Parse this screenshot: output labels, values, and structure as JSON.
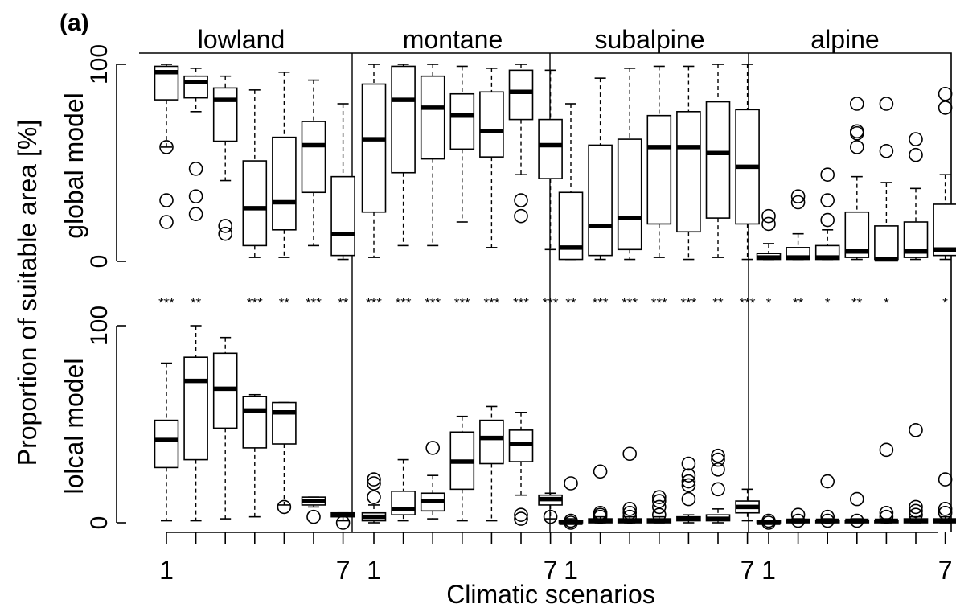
{
  "panel_label": "(a)",
  "chart_data": {
    "type": "boxplot",
    "ylabel": "Proportion of suitable area [%]",
    "xlabel": "Climatic scenarios",
    "ylim": [
      0,
      100
    ],
    "y_ticks": [
      "0",
      "100"
    ],
    "x_tick_labels": [
      "1",
      "7"
    ],
    "zones": [
      "lowland",
      "montane",
      "subalpine",
      "alpine"
    ],
    "models": [
      "global model",
      "lolcal model"
    ],
    "significance": [
      [
        "***",
        "**",
        "",
        "***",
        "**",
        "***",
        "**"
      ],
      [
        "***",
        "***",
        "***",
        "***",
        "***",
        "***",
        "***"
      ],
      [
        "**",
        "***",
        "***",
        "***",
        "***",
        "**",
        "***"
      ],
      [
        "*",
        "**",
        "*",
        "**",
        "*",
        "",
        "*"
      ]
    ],
    "panels": [
      {
        "model": "global model",
        "zones": [
          {
            "zone": "lowland",
            "boxes": [
              {
                "scenario": 1,
                "min": 58,
                "q1": 82,
                "median": 96,
                "q3": 99,
                "max": 100,
                "outliers": [
                  58,
                  31,
                  20
                ]
              },
              {
                "scenario": 2,
                "min": 76,
                "q1": 83,
                "median": 91,
                "q3": 94,
                "max": 98,
                "outliers": [
                  47,
                  33,
                  24
                ]
              },
              {
                "scenario": 3,
                "min": 41,
                "q1": 61,
                "median": 82,
                "q3": 88,
                "max": 94,
                "outliers": [
                  18,
                  14
                ]
              },
              {
                "scenario": 4,
                "min": 2,
                "q1": 8,
                "median": 27,
                "q3": 51,
                "max": 87,
                "outliers": []
              },
              {
                "scenario": 5,
                "min": 2,
                "q1": 16,
                "median": 30,
                "q3": 63,
                "max": 96,
                "outliers": []
              },
              {
                "scenario": 6,
                "min": 8,
                "q1": 35,
                "median": 59,
                "q3": 71,
                "max": 92,
                "outliers": []
              },
              {
                "scenario": 7,
                "min": 1,
                "q1": 3,
                "median": 14,
                "q3": 43,
                "max": 80,
                "outliers": []
              }
            ]
          },
          {
            "zone": "montane",
            "boxes": [
              {
                "scenario": 1,
                "min": 2,
                "q1": 25,
                "median": 62,
                "q3": 90,
                "max": 100,
                "outliers": []
              },
              {
                "scenario": 2,
                "min": 8,
                "q1": 45,
                "median": 82,
                "q3": 99,
                "max": 100,
                "outliers": []
              },
              {
                "scenario": 3,
                "min": 8,
                "q1": 52,
                "median": 78,
                "q3": 94,
                "max": 100,
                "outliers": []
              },
              {
                "scenario": 4,
                "min": 20,
                "q1": 57,
                "median": 74,
                "q3": 85,
                "max": 99,
                "outliers": []
              },
              {
                "scenario": 5,
                "min": 7,
                "q1": 53,
                "median": 66,
                "q3": 86,
                "max": 98,
                "outliers": []
              },
              {
                "scenario": 6,
                "min": 44,
                "q1": 72,
                "median": 86,
                "q3": 97,
                "max": 100,
                "outliers": [
                  31,
                  23
                ]
              },
              {
                "scenario": 7,
                "min": 6,
                "q1": 42,
                "median": 59,
                "q3": 72,
                "max": 97,
                "outliers": []
              }
            ]
          },
          {
            "zone": "subalpine",
            "boxes": [
              {
                "scenario": 1,
                "min": 1,
                "q1": 1,
                "median": 7,
                "q3": 35,
                "max": 80,
                "outliers": []
              },
              {
                "scenario": 2,
                "min": 1,
                "q1": 3,
                "median": 18,
                "q3": 59,
                "max": 93,
                "outliers": []
              },
              {
                "scenario": 3,
                "min": 1,
                "q1": 6,
                "median": 22,
                "q3": 62,
                "max": 98,
                "outliers": []
              },
              {
                "scenario": 4,
                "min": 2,
                "q1": 19,
                "median": 58,
                "q3": 74,
                "max": 99,
                "outliers": []
              },
              {
                "scenario": 5,
                "min": 1,
                "q1": 15,
                "median": 58,
                "q3": 76,
                "max": 99,
                "outliers": []
              },
              {
                "scenario": 6,
                "min": 2,
                "q1": 22,
                "median": 55,
                "q3": 81,
                "max": 100,
                "outliers": []
              },
              {
                "scenario": 7,
                "min": 1,
                "q1": 19,
                "median": 48,
                "q3": 77,
                "max": 100,
                "outliers": []
              }
            ]
          },
          {
            "zone": "alpine",
            "boxes": [
              {
                "scenario": 1,
                "min": 1,
                "q1": 1,
                "median": 2,
                "q3": 4,
                "max": 9,
                "outliers": [
                  23,
                  19
                ]
              },
              {
                "scenario": 2,
                "min": 1,
                "q1": 1,
                "median": 2,
                "q3": 7,
                "max": 14,
                "outliers": [
                  33,
                  30
                ]
              },
              {
                "scenario": 3,
                "min": 1,
                "q1": 1,
                "median": 2,
                "q3": 8,
                "max": 16,
                "outliers": [
                  44,
                  31,
                  21
                ]
              },
              {
                "scenario": 4,
                "min": 1,
                "q1": 2,
                "median": 5,
                "q3": 25,
                "max": 43,
                "outliers": [
                  80,
                  66,
                  65,
                  58
                ]
              },
              {
                "scenario": 5,
                "min": 1,
                "q1": 1,
                "median": 1,
                "q3": 18,
                "max": 40,
                "outliers": [
                  80,
                  56
                ]
              },
              {
                "scenario": 6,
                "min": 1,
                "q1": 2,
                "median": 5,
                "q3": 20,
                "max": 37,
                "outliers": [
                  62,
                  54
                ]
              },
              {
                "scenario": 7,
                "min": 1,
                "q1": 3,
                "median": 6,
                "q3": 29,
                "max": 44,
                "outliers": [
                  85,
                  78
                ]
              }
            ]
          }
        ]
      },
      {
        "model": "lolcal model",
        "zones": [
          {
            "zone": "lowland",
            "boxes": [
              {
                "scenario": 1,
                "min": 1,
                "q1": 28,
                "median": 42,
                "q3": 52,
                "max": 81,
                "outliers": []
              },
              {
                "scenario": 2,
                "min": 1,
                "q1": 32,
                "median": 72,
                "q3": 84,
                "max": 100,
                "outliers": []
              },
              {
                "scenario": 3,
                "min": 2,
                "q1": 48,
                "median": 68,
                "q3": 86,
                "max": 94,
                "outliers": []
              },
              {
                "scenario": 4,
                "min": 3,
                "q1": 38,
                "median": 57,
                "q3": 64,
                "max": 65,
                "outliers": []
              },
              {
                "scenario": 5,
                "min": 9,
                "q1": 40,
                "median": 56,
                "q3": 61,
                "max": 61,
                "outliers": [
                  8
                ]
              },
              {
                "scenario": 6,
                "min": 8,
                "q1": 9,
                "median": 11,
                "q3": 13,
                "max": 13,
                "outliers": [
                  3
                ]
              },
              {
                "scenario": 7,
                "min": 1,
                "q1": 3,
                "median": 4,
                "q3": 5,
                "max": 5,
                "outliers": [
                  0
                ]
              }
            ]
          },
          {
            "zone": "montane",
            "boxes": [
              {
                "scenario": 1,
                "min": 0,
                "q1": 1,
                "median": 3,
                "q3": 5,
                "max": 9,
                "outliers": [
                  22,
                  20,
                  13
                ]
              },
              {
                "scenario": 2,
                "min": 1,
                "q1": 4,
                "median": 7,
                "q3": 16,
                "max": 32,
                "outliers": []
              },
              {
                "scenario": 3,
                "min": 2,
                "q1": 6,
                "median": 11,
                "q3": 15,
                "max": 24,
                "outliers": [
                  38
                ]
              },
              {
                "scenario": 4,
                "min": 1,
                "q1": 17,
                "median": 31,
                "q3": 46,
                "max": 54,
                "outliers": []
              },
              {
                "scenario": 5,
                "min": 1,
                "q1": 30,
                "median": 43,
                "q3": 52,
                "max": 59,
                "outliers": []
              },
              {
                "scenario": 6,
                "min": 14,
                "q1": 31,
                "median": 40,
                "q3": 47,
                "max": 56,
                "outliers": [
                  4,
                  2
                ]
              },
              {
                "scenario": 7,
                "min": 2,
                "q1": 9,
                "median": 12,
                "q3": 14,
                "max": 15,
                "outliers": [
                  3
                ]
              }
            ]
          },
          {
            "zone": "subalpine",
            "boxes": [
              {
                "scenario": 1,
                "min": 0,
                "q1": 0,
                "median": 0,
                "q3": 1,
                "max": 2,
                "outliers": [
                  20,
                  1,
                  0
                ]
              },
              {
                "scenario": 2,
                "min": 0,
                "q1": 0,
                "median": 1,
                "q3": 2,
                "max": 3,
                "outliers": [
                  26,
                  5,
                  4,
                  3
                ]
              },
              {
                "scenario": 3,
                "min": 0,
                "q1": 0,
                "median": 1,
                "q3": 2,
                "max": 3,
                "outliers": [
                  35,
                  7,
                  5,
                  3
                ]
              },
              {
                "scenario": 4,
                "min": 0,
                "q1": 0,
                "median": 1,
                "q3": 2,
                "max": 3,
                "outliers": [
                  13,
                  11,
                  8,
                  4
                ]
              },
              {
                "scenario": 5,
                "min": 0,
                "q1": 1,
                "median": 2,
                "q3": 3,
                "max": 4,
                "outliers": [
                  30,
                  24,
                  21,
                  19,
                  12
                ]
              },
              {
                "scenario": 6,
                "min": 0,
                "q1": 1,
                "median": 2,
                "q3": 4,
                "max": 7,
                "outliers": [
                  34,
                  32,
                  27,
                  17
                ]
              },
              {
                "scenario": 7,
                "min": 1,
                "q1": 5,
                "median": 8,
                "q3": 11,
                "max": 17,
                "outliers": []
              }
            ]
          },
          {
            "zone": "alpine",
            "boxes": [
              {
                "scenario": 1,
                "min": 0,
                "q1": 0,
                "median": 0,
                "q3": 1,
                "max": 1,
                "outliers": [
                  1,
                  0
                ]
              },
              {
                "scenario": 2,
                "min": 0,
                "q1": 0,
                "median": 1,
                "q3": 1,
                "max": 2,
                "outliers": [
                  4,
                  1
                ]
              },
              {
                "scenario": 3,
                "min": 0,
                "q1": 0,
                "median": 1,
                "q3": 1,
                "max": 2,
                "outliers": [
                  21,
                  3,
                  1
                ]
              },
              {
                "scenario": 4,
                "min": 0,
                "q1": 0,
                "median": 1,
                "q3": 1,
                "max": 2,
                "outliers": [
                  12,
                  1
                ]
              },
              {
                "scenario": 5,
                "min": 0,
                "q1": 0,
                "median": 1,
                "q3": 1,
                "max": 2,
                "outliers": [
                  37,
                  5,
                  3
                ]
              },
              {
                "scenario": 6,
                "min": 0,
                "q1": 0,
                "median": 1,
                "q3": 2,
                "max": 3,
                "outliers": [
                  47,
                  8,
                  6,
                  4
                ]
              },
              {
                "scenario": 7,
                "min": 0,
                "q1": 0,
                "median": 1,
                "q3": 2,
                "max": 3,
                "outliers": [
                  22,
                  7,
                  5
                ]
              }
            ]
          }
        ]
      }
    ]
  }
}
